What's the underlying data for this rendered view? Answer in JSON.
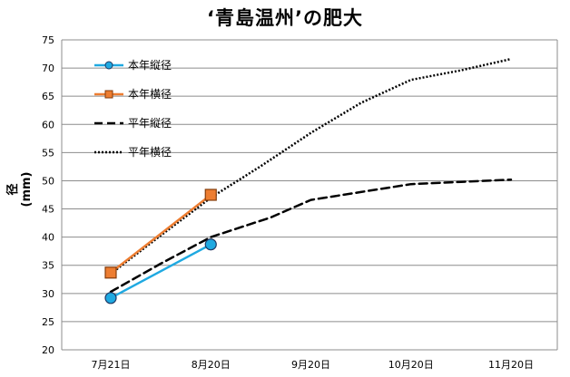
{
  "chart_data": {
    "type": "line",
    "title": "‘青島温州’の肥大",
    "ylabel": "径(mm)",
    "xlabel": "",
    "ylim": [
      20,
      75
    ],
    "yticks": [
      20,
      25,
      30,
      35,
      40,
      45,
      50,
      55,
      60,
      65,
      70,
      75
    ],
    "categories": [
      "7月21日",
      "8月20日",
      "9月20日",
      "10月20日",
      "11月20日"
    ],
    "grid": "horizontal",
    "legend_position": "top-left",
    "series": [
      {
        "name": "本年縦径",
        "x": [
          0,
          1
        ],
        "values": [
          29.2,
          38.7
        ],
        "color": "#1fa9e1",
        "style": "solid",
        "marker": "circle"
      },
      {
        "name": "本年横径",
        "x": [
          0,
          1
        ],
        "values": [
          33.7,
          47.5
        ],
        "color": "#ed7d31",
        "style": "solid",
        "marker": "square"
      },
      {
        "name": "平年縦径",
        "x": [
          0,
          0.5,
          1,
          1.6,
          2,
          2.5,
          3,
          3.5,
          4
        ],
        "values": [
          30.3,
          35.3,
          40.0,
          43.5,
          46.6,
          48.0,
          49.4,
          49.8,
          50.2
        ],
        "color": "#000000",
        "style": "dashed",
        "marker": "none"
      },
      {
        "name": "平年横径",
        "x": [
          0,
          0.5,
          1,
          1.5,
          2,
          2.5,
          3,
          3.5,
          4
        ],
        "values": [
          33.5,
          40.3,
          47.0,
          52.6,
          58.5,
          63.8,
          67.9,
          69.6,
          71.6
        ],
        "color": "#000000",
        "style": "dotted",
        "marker": "none"
      }
    ]
  }
}
